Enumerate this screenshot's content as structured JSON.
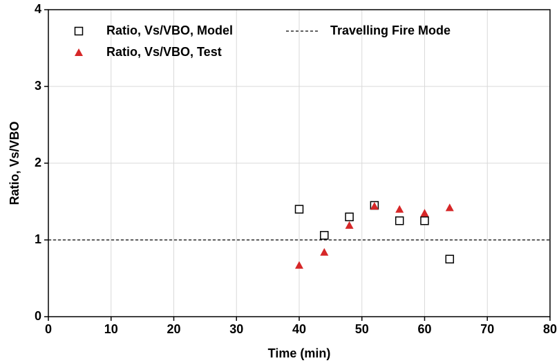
{
  "chart_data": {
    "type": "scatter",
    "x_label": "Time (min)",
    "y_label": "Ratio, Vs/VBO",
    "xlim": [
      0,
      80
    ],
    "ylim": [
      0,
      4
    ],
    "xticks": [
      0,
      10,
      20,
      30,
      40,
      50,
      60,
      70,
      80
    ],
    "yticks": [
      0,
      1,
      2,
      3,
      4
    ],
    "grid": true,
    "legend": "upper left",
    "series": [
      {
        "name": "Ratio, Vs/VBO, Model",
        "marker": "square",
        "color": "#000000",
        "x": [
          40,
          44,
          48,
          52,
          56,
          60,
          64
        ],
        "values": [
          1.4,
          1.06,
          1.3,
          1.45,
          1.25,
          1.25,
          0.75
        ]
      },
      {
        "name": "Ratio, Vs/VBO, Test",
        "marker": "triangle",
        "color": "#d62728",
        "x": [
          40,
          44,
          48,
          52,
          56,
          60,
          64
        ],
        "values": [
          0.67,
          0.84,
          1.19,
          1.44,
          1.4,
          1.35,
          1.42
        ]
      }
    ],
    "reference_lines": [
      {
        "name": "Travelling Fire Mode",
        "y": 1,
        "color": "#000000",
        "style": "dashed"
      }
    ]
  }
}
